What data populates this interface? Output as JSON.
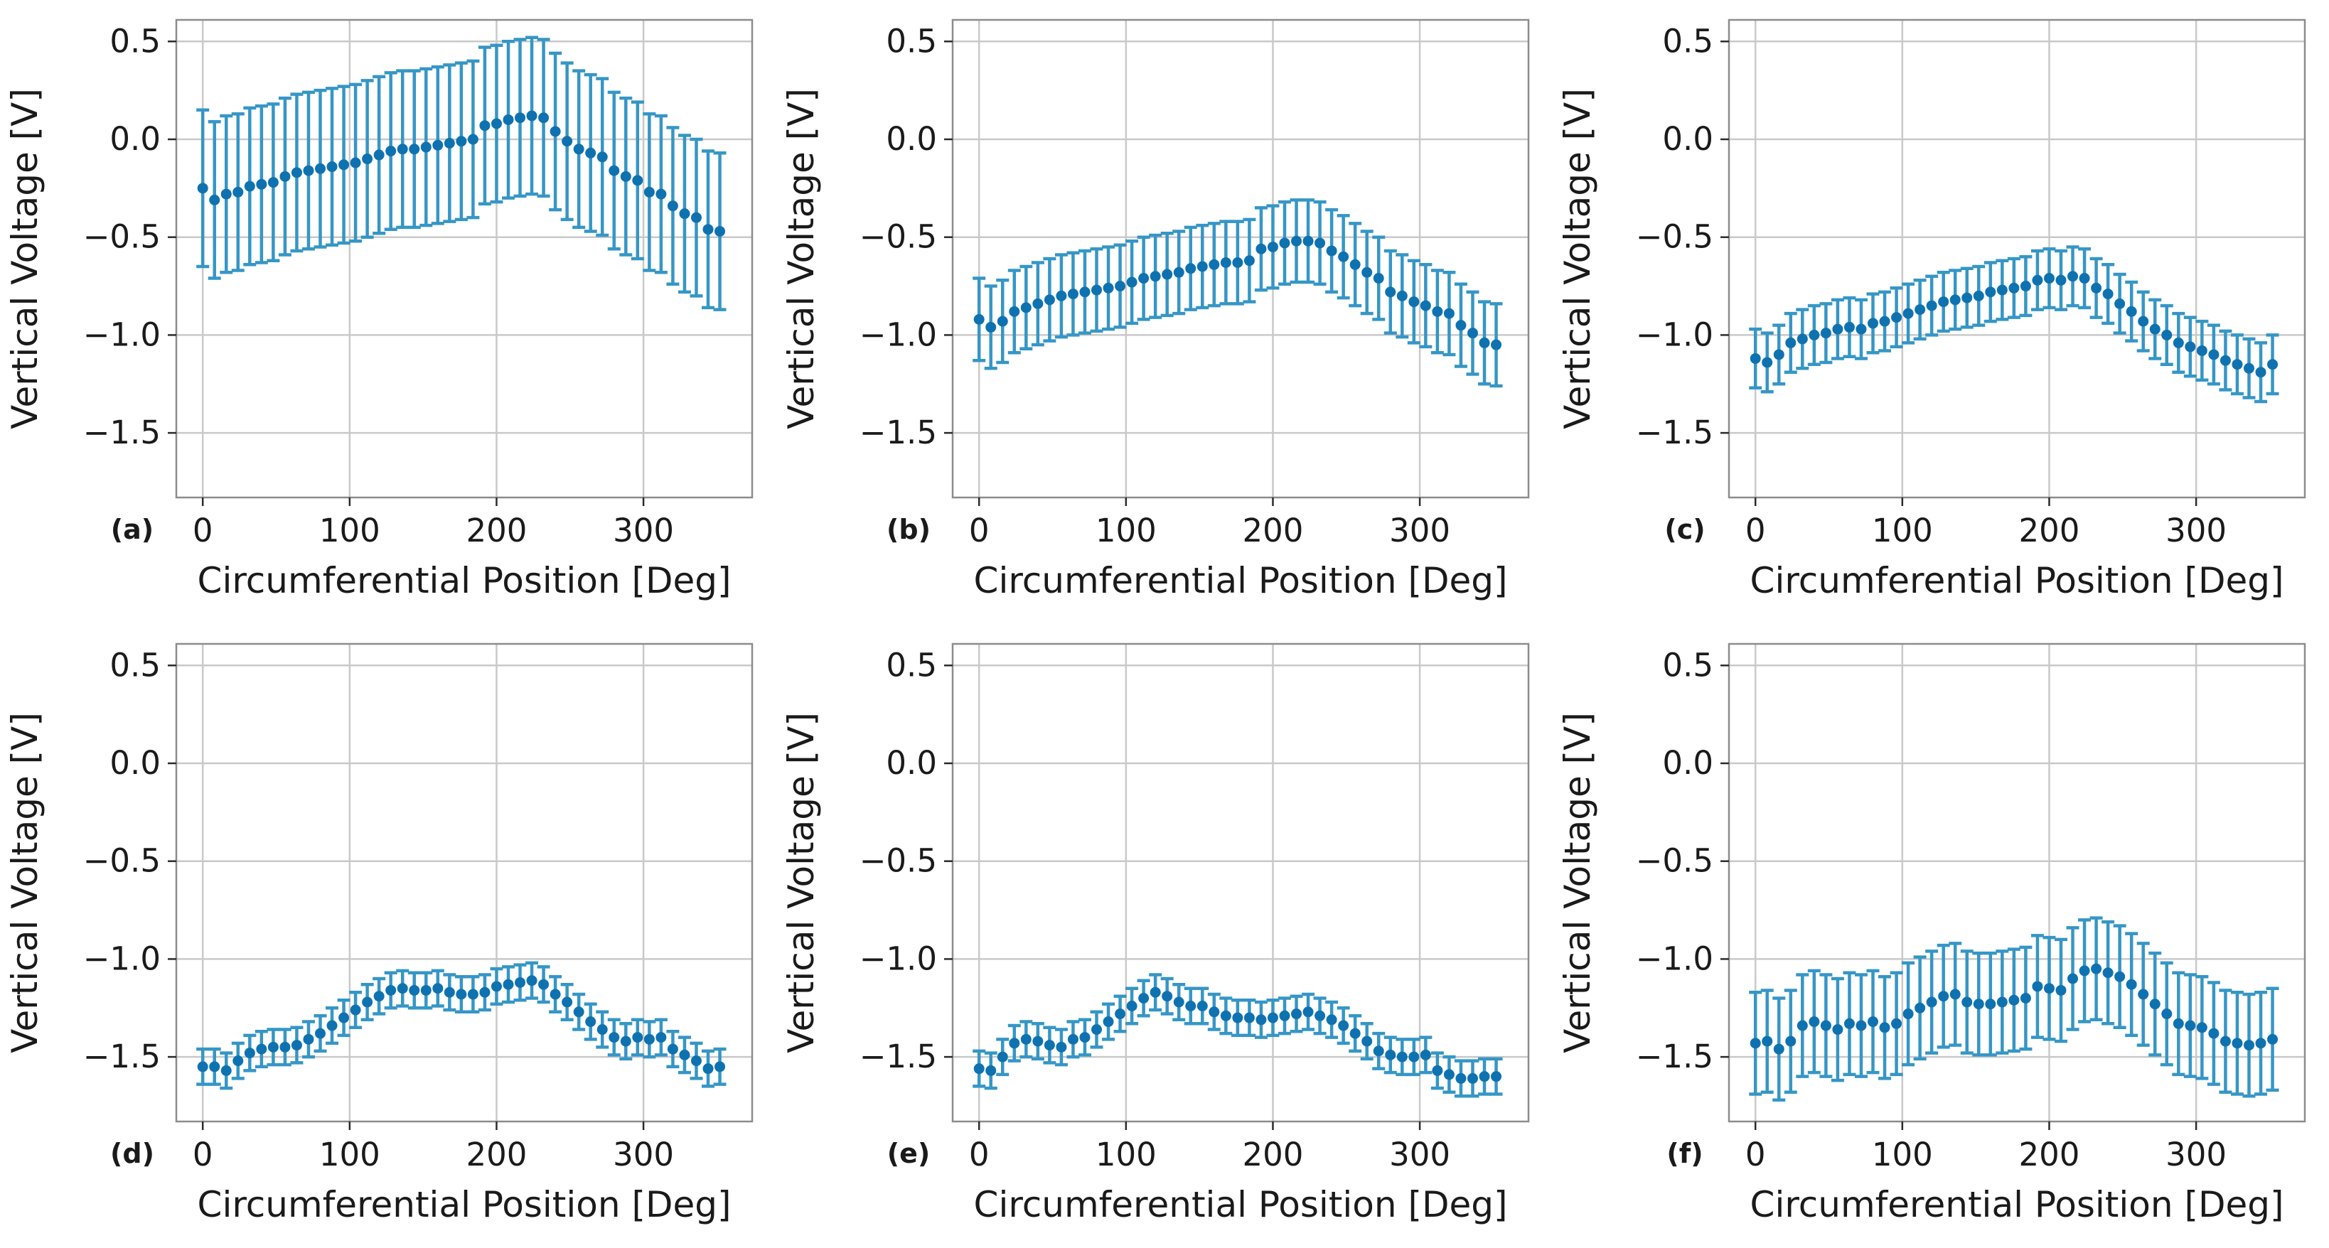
{
  "figure": {
    "background": "#ffffff",
    "rows": 2,
    "cols": 3,
    "colors": {
      "marker": "#0f72b0",
      "errorbar": "#3596c6",
      "grid": "#c9c9c9",
      "spine": "#8c8c8c",
      "tick": "#2b2b2b",
      "text": "#1a1a1a"
    }
  },
  "chart_data": [
    {
      "type": "scatter",
      "panel_label": "(a)",
      "xlabel": "Circumferential Position [Deg]",
      "ylabel": "Vertical Voltage [V]",
      "title": "",
      "xlim": [
        -18,
        374
      ],
      "ylim": [
        -1.83,
        0.61
      ],
      "grid": true,
      "legend": "none",
      "xtick_values": [
        0,
        100,
        200,
        300
      ],
      "xtick_labels": [
        "0",
        "100",
        "200",
        "300"
      ],
      "ytick_values": [
        0.5,
        0.0,
        -0.5,
        -1.0,
        -1.5
      ],
      "ytick_labels": [
        "0.5",
        "0.0",
        "−0.5",
        "−1.0",
        "−1.5"
      ],
      "x": [
        0,
        8,
        16,
        24,
        32,
        40,
        48,
        56,
        64,
        72,
        80,
        88,
        96,
        104,
        112,
        120,
        128,
        136,
        144,
        152,
        160,
        168,
        176,
        184,
        192,
        200,
        208,
        216,
        224,
        232,
        240,
        248,
        256,
        264,
        272,
        280,
        288,
        296,
        304,
        312,
        320,
        328,
        336,
        344,
        352
      ],
      "y": [
        -0.25,
        -0.31,
        -0.28,
        -0.27,
        -0.24,
        -0.23,
        -0.22,
        -0.19,
        -0.17,
        -0.16,
        -0.15,
        -0.14,
        -0.13,
        -0.12,
        -0.1,
        -0.08,
        -0.06,
        -0.05,
        -0.05,
        -0.04,
        -0.03,
        -0.02,
        -0.01,
        0.0,
        0.07,
        0.08,
        0.1,
        0.11,
        0.12,
        0.11,
        0.04,
        -0.01,
        -0.05,
        -0.07,
        -0.09,
        -0.16,
        -0.19,
        -0.21,
        -0.27,
        -0.28,
        -0.34,
        -0.38,
        -0.4,
        -0.46,
        -0.47
      ],
      "yerr": 0.4
    },
    {
      "type": "scatter",
      "panel_label": "(b)",
      "xlabel": "Circumferential Position [Deg]",
      "ylabel": "Vertical Voltage [V]",
      "title": "",
      "xlim": [
        -18,
        374
      ],
      "ylim": [
        -1.83,
        0.61
      ],
      "grid": true,
      "legend": "none",
      "xtick_values": [
        0,
        100,
        200,
        300
      ],
      "xtick_labels": [
        "0",
        "100",
        "200",
        "300"
      ],
      "ytick_values": [
        0.5,
        0.0,
        -0.5,
        -1.0,
        -1.5
      ],
      "ytick_labels": [
        "0.5",
        "0.0",
        "−0.5",
        "−1.0",
        "−1.5"
      ],
      "x": [
        0,
        8,
        16,
        24,
        32,
        40,
        48,
        56,
        64,
        72,
        80,
        88,
        96,
        104,
        112,
        120,
        128,
        136,
        144,
        152,
        160,
        168,
        176,
        184,
        192,
        200,
        208,
        216,
        224,
        232,
        240,
        248,
        256,
        264,
        272,
        280,
        288,
        296,
        304,
        312,
        320,
        328,
        336,
        344,
        352
      ],
      "y": [
        -0.92,
        -0.96,
        -0.93,
        -0.88,
        -0.86,
        -0.84,
        -0.82,
        -0.8,
        -0.79,
        -0.78,
        -0.77,
        -0.76,
        -0.75,
        -0.73,
        -0.71,
        -0.7,
        -0.69,
        -0.68,
        -0.66,
        -0.65,
        -0.64,
        -0.63,
        -0.63,
        -0.62,
        -0.56,
        -0.55,
        -0.53,
        -0.52,
        -0.52,
        -0.53,
        -0.57,
        -0.6,
        -0.64,
        -0.68,
        -0.71,
        -0.78,
        -0.8,
        -0.83,
        -0.85,
        -0.88,
        -0.89,
        -0.95,
        -0.99,
        -1.04,
        -1.05
      ],
      "yerr": 0.21
    },
    {
      "type": "scatter",
      "panel_label": "(c)",
      "xlabel": "Circumferential Position [Deg]",
      "ylabel": "Vertical Voltage [V]",
      "title": "",
      "xlim": [
        -18,
        374
      ],
      "ylim": [
        -1.83,
        0.61
      ],
      "grid": true,
      "legend": "none",
      "xtick_values": [
        0,
        100,
        200,
        300
      ],
      "xtick_labels": [
        "0",
        "100",
        "200",
        "300"
      ],
      "ytick_values": [
        0.5,
        0.0,
        -0.5,
        -1.0,
        -1.5
      ],
      "ytick_labels": [
        "0.5",
        "0.0",
        "−0.5",
        "−1.0",
        "−1.5"
      ],
      "x": [
        0,
        8,
        16,
        24,
        32,
        40,
        48,
        56,
        64,
        72,
        80,
        88,
        96,
        104,
        112,
        120,
        128,
        136,
        144,
        152,
        160,
        168,
        176,
        184,
        192,
        200,
        208,
        216,
        224,
        232,
        240,
        248,
        256,
        264,
        272,
        280,
        288,
        296,
        304,
        312,
        320,
        328,
        336,
        344,
        352
      ],
      "y": [
        -1.12,
        -1.14,
        -1.1,
        -1.04,
        -1.02,
        -1.0,
        -0.99,
        -0.97,
        -0.96,
        -0.97,
        -0.94,
        -0.93,
        -0.91,
        -0.89,
        -0.87,
        -0.85,
        -0.83,
        -0.82,
        -0.81,
        -0.8,
        -0.78,
        -0.77,
        -0.76,
        -0.75,
        -0.72,
        -0.71,
        -0.72,
        -0.7,
        -0.71,
        -0.76,
        -0.79,
        -0.84,
        -0.88,
        -0.93,
        -0.97,
        -1.0,
        -1.04,
        -1.06,
        -1.08,
        -1.1,
        -1.13,
        -1.15,
        -1.17,
        -1.19,
        -1.15
      ],
      "yerr": 0.15
    },
    {
      "type": "scatter",
      "panel_label": "(d)",
      "xlabel": "Circumferential Position [Deg]",
      "ylabel": "Vertical Voltage [V]",
      "title": "",
      "xlim": [
        -18,
        374
      ],
      "ylim": [
        -1.83,
        0.61
      ],
      "grid": true,
      "legend": "none",
      "xtick_values": [
        0,
        100,
        200,
        300
      ],
      "xtick_labels": [
        "0",
        "100",
        "200",
        "300"
      ],
      "ytick_values": [
        0.5,
        0.0,
        -0.5,
        -1.0,
        -1.5
      ],
      "ytick_labels": [
        "0.5",
        "0.0",
        "−0.5",
        "−1.0",
        "−1.5"
      ],
      "x": [
        0,
        8,
        16,
        24,
        32,
        40,
        48,
        56,
        64,
        72,
        80,
        88,
        96,
        104,
        112,
        120,
        128,
        136,
        144,
        152,
        160,
        168,
        176,
        184,
        192,
        200,
        208,
        216,
        224,
        232,
        240,
        248,
        256,
        264,
        272,
        280,
        288,
        296,
        304,
        312,
        320,
        328,
        336,
        344,
        352
      ],
      "y": [
        -1.55,
        -1.55,
        -1.57,
        -1.52,
        -1.48,
        -1.46,
        -1.45,
        -1.45,
        -1.44,
        -1.41,
        -1.38,
        -1.34,
        -1.3,
        -1.26,
        -1.22,
        -1.19,
        -1.16,
        -1.15,
        -1.16,
        -1.16,
        -1.15,
        -1.17,
        -1.18,
        -1.18,
        -1.17,
        -1.14,
        -1.13,
        -1.12,
        -1.11,
        -1.13,
        -1.18,
        -1.22,
        -1.27,
        -1.32,
        -1.36,
        -1.4,
        -1.42,
        -1.4,
        -1.41,
        -1.4,
        -1.46,
        -1.49,
        -1.52,
        -1.56,
        -1.55
      ],
      "yerr": 0.09
    },
    {
      "type": "scatter",
      "panel_label": "(e)",
      "xlabel": "Circumferential Position [Deg]",
      "ylabel": "Vertical Voltage [V]",
      "title": "",
      "xlim": [
        -18,
        374
      ],
      "ylim": [
        -1.83,
        0.61
      ],
      "grid": true,
      "legend": "none",
      "xtick_values": [
        0,
        100,
        200,
        300
      ],
      "xtick_labels": [
        "0",
        "100",
        "200",
        "300"
      ],
      "ytick_values": [
        0.5,
        0.0,
        -0.5,
        -1.0,
        -1.5
      ],
      "ytick_labels": [
        "0.5",
        "0.0",
        "−0.5",
        "−1.0",
        "−1.5"
      ],
      "x": [
        0,
        8,
        16,
        24,
        32,
        40,
        48,
        56,
        64,
        72,
        80,
        88,
        96,
        104,
        112,
        120,
        128,
        136,
        144,
        152,
        160,
        168,
        176,
        184,
        192,
        200,
        208,
        216,
        224,
        232,
        240,
        248,
        256,
        264,
        272,
        280,
        288,
        296,
        304,
        312,
        320,
        328,
        336,
        344,
        352
      ],
      "y": [
        -1.56,
        -1.57,
        -1.5,
        -1.43,
        -1.41,
        -1.42,
        -1.44,
        -1.45,
        -1.41,
        -1.4,
        -1.36,
        -1.32,
        -1.28,
        -1.24,
        -1.2,
        -1.17,
        -1.19,
        -1.22,
        -1.24,
        -1.24,
        -1.27,
        -1.29,
        -1.3,
        -1.3,
        -1.31,
        -1.3,
        -1.29,
        -1.28,
        -1.27,
        -1.29,
        -1.31,
        -1.34,
        -1.38,
        -1.42,
        -1.47,
        -1.49,
        -1.5,
        -1.5,
        -1.49,
        -1.57,
        -1.59,
        -1.61,
        -1.61,
        -1.6,
        -1.6
      ],
      "yerr": 0.09
    },
    {
      "type": "scatter",
      "panel_label": "(f)",
      "xlabel": "Circumferential Position [Deg]",
      "ylabel": "Vertical Voltage [V]",
      "title": "",
      "xlim": [
        -18,
        374
      ],
      "ylim": [
        -1.83,
        0.61
      ],
      "grid": true,
      "legend": "none",
      "xtick_values": [
        0,
        100,
        200,
        300
      ],
      "xtick_labels": [
        "0",
        "100",
        "200",
        "300"
      ],
      "ytick_values": [
        0.5,
        0.0,
        -0.5,
        -1.0,
        -1.5
      ],
      "ytick_labels": [
        "0.5",
        "0.0",
        "−0.5",
        "−1.0",
        "−1.5"
      ],
      "x": [
        0,
        8,
        16,
        24,
        32,
        40,
        48,
        56,
        64,
        72,
        80,
        88,
        96,
        104,
        112,
        120,
        128,
        136,
        144,
        152,
        160,
        168,
        176,
        184,
        192,
        200,
        208,
        216,
        224,
        232,
        240,
        248,
        256,
        264,
        272,
        280,
        288,
        296,
        304,
        312,
        320,
        328,
        336,
        344,
        352
      ],
      "y": [
        -1.43,
        -1.42,
        -1.46,
        -1.42,
        -1.34,
        -1.32,
        -1.34,
        -1.36,
        -1.33,
        -1.34,
        -1.32,
        -1.35,
        -1.33,
        -1.28,
        -1.25,
        -1.22,
        -1.19,
        -1.18,
        -1.22,
        -1.23,
        -1.23,
        -1.22,
        -1.21,
        -1.2,
        -1.14,
        -1.15,
        -1.16,
        -1.1,
        -1.06,
        -1.05,
        -1.07,
        -1.09,
        -1.13,
        -1.18,
        -1.23,
        -1.28,
        -1.33,
        -1.34,
        -1.35,
        -1.38,
        -1.42,
        -1.43,
        -1.44,
        -1.43,
        -1.41
      ],
      "yerr": 0.26
    }
  ]
}
